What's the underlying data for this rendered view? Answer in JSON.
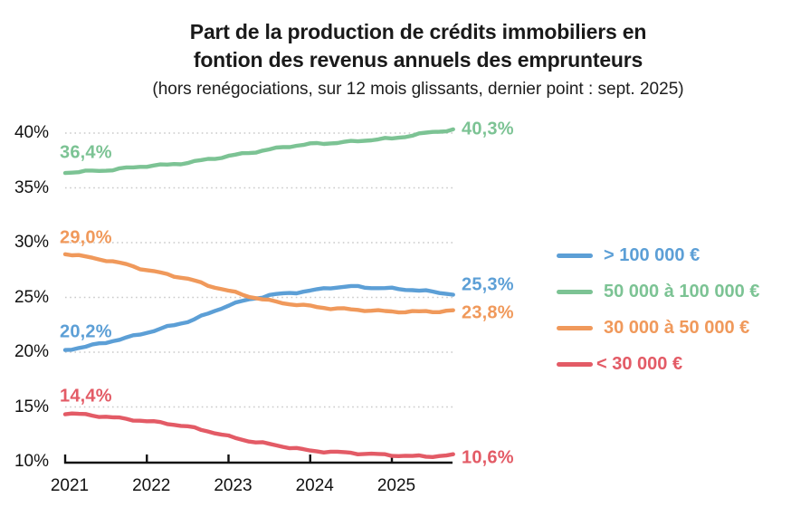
{
  "chart_data": {
    "type": "line",
    "title_line1": "Part de la production de crédits immobiliers en",
    "title_line2": "fontion des revenus annuels des emprunteurs",
    "subtitle": "(hors renégociations, sur 12 mois glissants, dernier point : sept. 2025)",
    "x": [
      2021.0,
      2021.25,
      2021.5,
      2021.75,
      2022.0,
      2022.25,
      2022.5,
      2022.75,
      2023.0,
      2023.25,
      2023.5,
      2023.75,
      2024.0,
      2024.25,
      2024.5,
      2024.75,
      2025.0,
      2025.25,
      2025.5,
      2025.75
    ],
    "series": [
      {
        "key": "over-100k",
        "name": "> 100 000 €",
        "color": "#5C9FD6",
        "values": [
          20.2,
          20.5,
          20.9,
          21.3,
          21.8,
          22.3,
          22.8,
          23.5,
          24.3,
          24.8,
          25.2,
          25.4,
          25.6,
          25.9,
          26.0,
          25.9,
          25.8,
          25.7,
          25.5,
          25.3
        ],
        "start_label": "20,2%",
        "end_label": "25,3%"
      },
      {
        "key": "50k-100k",
        "name": "50 000 à 100 000 €",
        "color": "#7CC394",
        "values": [
          36.4,
          36.5,
          36.6,
          36.8,
          37.0,
          37.1,
          37.3,
          37.6,
          37.9,
          38.2,
          38.5,
          38.8,
          39.0,
          39.1,
          39.2,
          39.4,
          39.5,
          39.8,
          40.1,
          40.3
        ],
        "start_label": "36,4%",
        "end_label": "40,3%"
      },
      {
        "key": "30k-50k",
        "name": "30 000 à 50 000 €",
        "color": "#F0995B",
        "values": [
          29.0,
          28.7,
          28.4,
          28.0,
          27.5,
          27.1,
          26.7,
          26.1,
          25.6,
          25.1,
          24.7,
          24.4,
          24.2,
          24.0,
          23.9,
          23.8,
          23.7,
          23.7,
          23.7,
          23.8
        ],
        "start_label": "29,0%",
        "end_label": "23,8%"
      },
      {
        "key": "under-30k",
        "name": "< 30 000 €",
        "color": "#E35B66",
        "values": [
          14.4,
          14.3,
          14.1,
          13.9,
          13.7,
          13.5,
          13.2,
          12.8,
          12.3,
          11.9,
          11.6,
          11.3,
          11.0,
          10.9,
          10.8,
          10.7,
          10.6,
          10.5,
          10.5,
          10.6
        ],
        "start_label": "14,4%",
        "end_label": "10,6%"
      }
    ],
    "ylim": [
      10,
      41
    ],
    "yticks": [
      10,
      15,
      20,
      25,
      30,
      35,
      40
    ],
    "ytick_labels": [
      "10%",
      "15%",
      "20%",
      "25%",
      "30%",
      "35%",
      "40%"
    ],
    "xticks": [
      2021,
      2022,
      2023,
      2024,
      2025
    ],
    "xtick_labels": [
      "2021",
      "2022",
      "2023",
      "2024",
      "2025"
    ],
    "grid": "horizontal-dotted",
    "grid_color": "#CACACA",
    "axis_color": "#111111",
    "legend_position": "right-middle"
  }
}
